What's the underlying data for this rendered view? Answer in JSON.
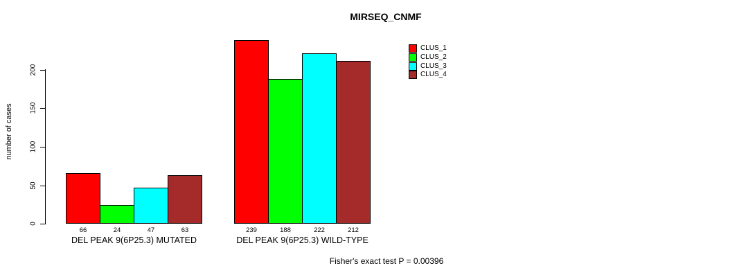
{
  "chart_data": {
    "type": "bar",
    "title": "MIRSEQ_CNMF",
    "ylabel": "number of cases",
    "xlabel": "",
    "ylim": [
      0,
      250
    ],
    "yticks": [
      0,
      50,
      100,
      150,
      200
    ],
    "grid": false,
    "legend_position": "upper-right-of-plot",
    "categories": [
      "DEL PEAK 9(6P25.3) MUTATED",
      "DEL PEAK 9(6P25.3) WILD-TYPE"
    ],
    "series": [
      {
        "name": "CLUS_1",
        "color": "#FF0000",
        "values": [
          66,
          239
        ]
      },
      {
        "name": "CLUS_2",
        "color": "#00FF00",
        "values": [
          24,
          188
        ]
      },
      {
        "name": "CLUS_3",
        "color": "#00FFFF",
        "values": [
          47,
          222
        ]
      },
      {
        "name": "CLUS_4",
        "color": "#A52A2A",
        "values": [
          63,
          212
        ]
      }
    ],
    "bar_value_labels_shown": true,
    "annotation": "Fisher's exact test P = 0.00396"
  }
}
